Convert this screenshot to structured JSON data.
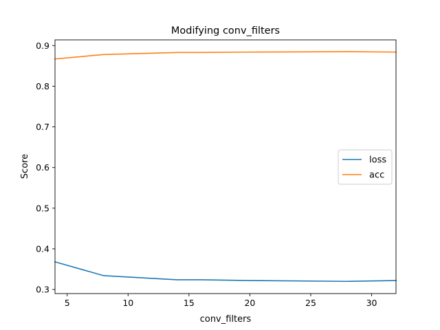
{
  "chart_data": {
    "type": "line",
    "title": "Modifying conv_filters",
    "xlabel": "conv_filters",
    "ylabel": "Score",
    "xlim": [
      4,
      32
    ],
    "ylim": [
      0.29,
      0.914
    ],
    "x_ticks": [
      5,
      10,
      15,
      20,
      25,
      30
    ],
    "y_ticks": [
      0.3,
      0.4,
      0.5,
      0.6,
      0.7,
      0.8,
      0.9
    ],
    "grid": false,
    "legend_position": "center-right",
    "x": [
      4,
      8,
      14,
      16,
      20,
      28,
      32
    ],
    "series": [
      {
        "name": "loss",
        "color": "#1f77b4",
        "values": [
          0.368,
          0.334,
          0.324,
          0.324,
          0.322,
          0.32,
          0.322
        ]
      },
      {
        "name": "acc",
        "color": "#ff7f0e",
        "values": [
          0.867,
          0.878,
          0.883,
          0.883,
          0.884,
          0.885,
          0.884
        ]
      }
    ]
  }
}
